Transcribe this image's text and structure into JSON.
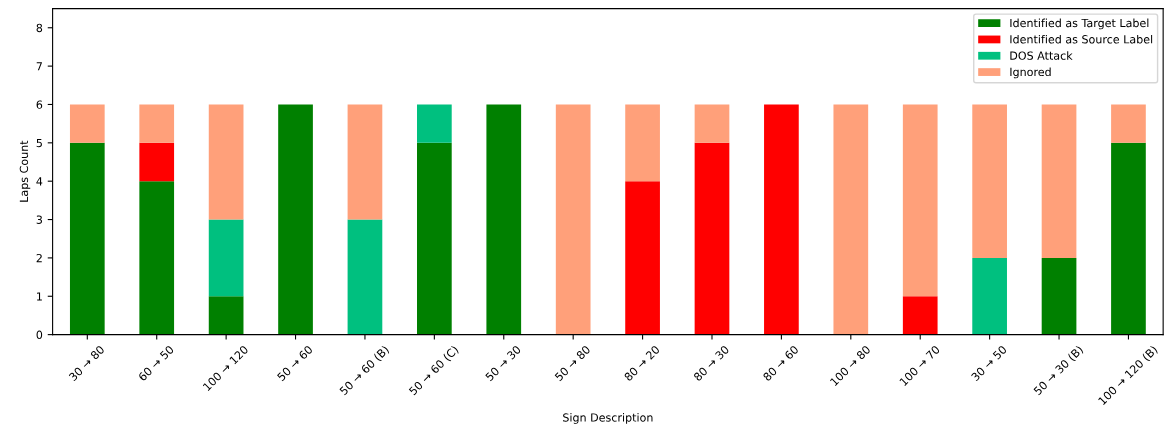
{
  "chart_data": {
    "type": "bar",
    "stacked": true,
    "xlabel": "Sign Description",
    "ylabel": "Laps Count",
    "categories": [
      "30 → 80",
      "60 → 50",
      "100 → 120",
      "50 → 60",
      "50 → 60 (B)",
      "50 → 60 (C)",
      "50 → 30",
      "50 → 80",
      "80 → 20",
      "80 → 30",
      "80 → 60",
      "100 → 80",
      "100 → 70",
      "30 → 50",
      "50 → 30 (B)",
      "100 → 120 (B)"
    ],
    "series": [
      {
        "name": "Identified as Target Label",
        "color": "#008000",
        "values": [
          5,
          4,
          1,
          6,
          0,
          5,
          6,
          0,
          0,
          0,
          0,
          0,
          0,
          0,
          2,
          5
        ]
      },
      {
        "name": "Identified as Source Label",
        "color": "#ff0000",
        "values": [
          0,
          1,
          0,
          0,
          0,
          0,
          0,
          0,
          4,
          5,
          6,
          0,
          1,
          0,
          0,
          0
        ]
      },
      {
        "name": "DOS Attack",
        "color": "#00c07f",
        "values": [
          0,
          0,
          2,
          0,
          3,
          1,
          0,
          0,
          0,
          0,
          0,
          0,
          0,
          2,
          0,
          0
        ]
      },
      {
        "name": "Ignored",
        "color": "#ffa07a",
        "values": [
          1,
          1,
          3,
          0,
          3,
          0,
          0,
          6,
          2,
          1,
          0,
          6,
          5,
          4,
          4,
          1
        ]
      }
    ],
    "ylim": [
      0,
      8.5
    ],
    "yticks": [
      0,
      1,
      2,
      3,
      4,
      5,
      6,
      7,
      8
    ],
    "grid": false,
    "legend": "top right"
  }
}
